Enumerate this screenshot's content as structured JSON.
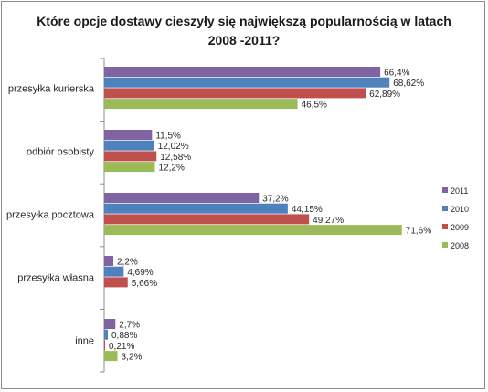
{
  "chart_data": {
    "type": "bar",
    "orientation": "horizontal",
    "title": "Które opcje dostawy cieszyły się największą popularnością w latach 2008 -2011?",
    "categories": [
      "przesyłka kurierska",
      "odbiór osobisty",
      "przesyłka pocztowa",
      "przesyłka własna",
      "inne"
    ],
    "series": [
      {
        "name": "2011",
        "color": "#8064a2",
        "values": [
          66.4,
          11.5,
          37.2,
          2.2,
          2.7
        ],
        "labels": [
          "66,4%",
          "11,5%",
          "37,2%",
          "2,2%",
          "2,7%"
        ]
      },
      {
        "name": "2010",
        "color": "#4f81bd",
        "values": [
          68.62,
          12.02,
          44.15,
          4.69,
          0.88
        ],
        "labels": [
          "68,62%",
          "12,02%",
          "44,15%",
          "4,69%",
          "0,88%"
        ]
      },
      {
        "name": "2009",
        "color": "#c0504d",
        "values": [
          62.89,
          12.58,
          49.27,
          5.66,
          0.21
        ],
        "labels": [
          "62,89%",
          "12,58%",
          "49,27%",
          "5,66%",
          "0,21%"
        ]
      },
      {
        "name": "2008",
        "color": "#9bbb59",
        "values": [
          46.5,
          12.2,
          71.6,
          null,
          3.2
        ],
        "labels": [
          "46,5%",
          "12,2%",
          "71,6%",
          "",
          "3,2%"
        ]
      }
    ],
    "xlim": [
      0,
      75
    ],
    "grid": false,
    "legend": {
      "position": "right",
      "order": [
        "2011",
        "2010",
        "2009",
        "2008"
      ]
    }
  }
}
